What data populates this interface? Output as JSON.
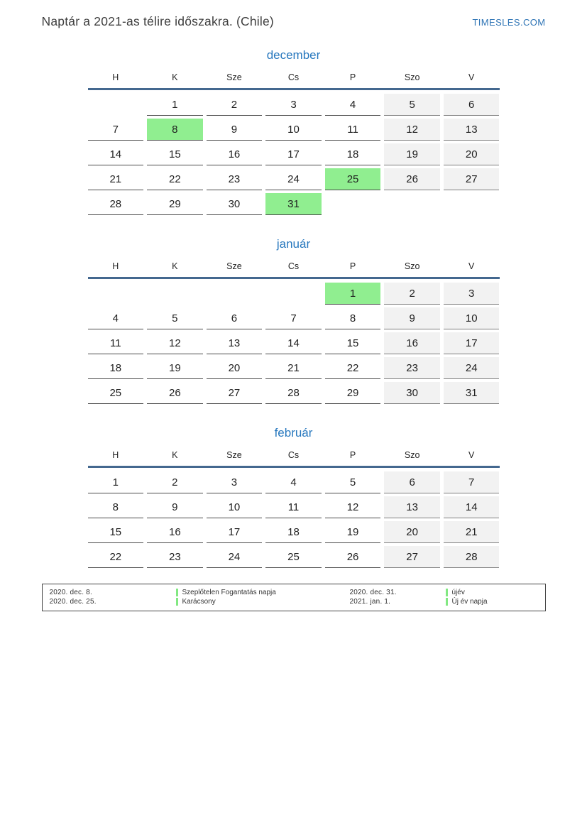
{
  "page": {
    "title": "Naptár a 2021-as télire időszakra. (Chile)",
    "site_link": "TIMESLES.COM"
  },
  "calendar": {
    "weekday_headers": [
      "H",
      "K",
      "Sze",
      "Cs",
      "P",
      "Szo",
      "V"
    ],
    "months": [
      {
        "name": "december",
        "weeks": [
          [
            {
              "day": "",
              "type": "empty"
            },
            {
              "day": "1",
              "type": "weekday"
            },
            {
              "day": "2",
              "type": "weekday"
            },
            {
              "day": "3",
              "type": "weekday"
            },
            {
              "day": "4",
              "type": "weekday"
            },
            {
              "day": "5",
              "type": "weekend"
            },
            {
              "day": "6",
              "type": "weekend"
            }
          ],
          [
            {
              "day": "7",
              "type": "weekday"
            },
            {
              "day": "8",
              "type": "holiday"
            },
            {
              "day": "9",
              "type": "weekday"
            },
            {
              "day": "10",
              "type": "weekday"
            },
            {
              "day": "11",
              "type": "weekday"
            },
            {
              "day": "12",
              "type": "weekend"
            },
            {
              "day": "13",
              "type": "weekend"
            }
          ],
          [
            {
              "day": "14",
              "type": "weekday"
            },
            {
              "day": "15",
              "type": "weekday"
            },
            {
              "day": "16",
              "type": "weekday"
            },
            {
              "day": "17",
              "type": "weekday"
            },
            {
              "day": "18",
              "type": "weekday"
            },
            {
              "day": "19",
              "type": "weekend"
            },
            {
              "day": "20",
              "type": "weekend"
            }
          ],
          [
            {
              "day": "21",
              "type": "weekday"
            },
            {
              "day": "22",
              "type": "weekday"
            },
            {
              "day": "23",
              "type": "weekday"
            },
            {
              "day": "24",
              "type": "weekday"
            },
            {
              "day": "25",
              "type": "holiday"
            },
            {
              "day": "26",
              "type": "weekend"
            },
            {
              "day": "27",
              "type": "weekend"
            }
          ],
          [
            {
              "day": "28",
              "type": "weekday"
            },
            {
              "day": "29",
              "type": "weekday"
            },
            {
              "day": "30",
              "type": "weekday"
            },
            {
              "day": "31",
              "type": "holiday"
            },
            {
              "day": "",
              "type": "empty"
            },
            {
              "day": "",
              "type": "empty"
            },
            {
              "day": "",
              "type": "empty"
            }
          ]
        ]
      },
      {
        "name": "január",
        "weeks": [
          [
            {
              "day": "",
              "type": "empty"
            },
            {
              "day": "",
              "type": "empty"
            },
            {
              "day": "",
              "type": "empty"
            },
            {
              "day": "",
              "type": "empty"
            },
            {
              "day": "1",
              "type": "holiday"
            },
            {
              "day": "2",
              "type": "weekend"
            },
            {
              "day": "3",
              "type": "weekend"
            }
          ],
          [
            {
              "day": "4",
              "type": "weekday"
            },
            {
              "day": "5",
              "type": "weekday"
            },
            {
              "day": "6",
              "type": "weekday"
            },
            {
              "day": "7",
              "type": "weekday"
            },
            {
              "day": "8",
              "type": "weekday"
            },
            {
              "day": "9",
              "type": "weekend"
            },
            {
              "day": "10",
              "type": "weekend"
            }
          ],
          [
            {
              "day": "11",
              "type": "weekday"
            },
            {
              "day": "12",
              "type": "weekday"
            },
            {
              "day": "13",
              "type": "weekday"
            },
            {
              "day": "14",
              "type": "weekday"
            },
            {
              "day": "15",
              "type": "weekday"
            },
            {
              "day": "16",
              "type": "weekend"
            },
            {
              "day": "17",
              "type": "weekend"
            }
          ],
          [
            {
              "day": "18",
              "type": "weekday"
            },
            {
              "day": "19",
              "type": "weekday"
            },
            {
              "day": "20",
              "type": "weekday"
            },
            {
              "day": "21",
              "type": "weekday"
            },
            {
              "day": "22",
              "type": "weekday"
            },
            {
              "day": "23",
              "type": "weekend"
            },
            {
              "day": "24",
              "type": "weekend"
            }
          ],
          [
            {
              "day": "25",
              "type": "weekday"
            },
            {
              "day": "26",
              "type": "weekday"
            },
            {
              "day": "27",
              "type": "weekday"
            },
            {
              "day": "28",
              "type": "weekday"
            },
            {
              "day": "29",
              "type": "weekday"
            },
            {
              "day": "30",
              "type": "weekend"
            },
            {
              "day": "31",
              "type": "weekend"
            }
          ]
        ]
      },
      {
        "name": "február",
        "weeks": [
          [
            {
              "day": "1",
              "type": "weekday"
            },
            {
              "day": "2",
              "type": "weekday"
            },
            {
              "day": "3",
              "type": "weekday"
            },
            {
              "day": "4",
              "type": "weekday"
            },
            {
              "day": "5",
              "type": "weekday"
            },
            {
              "day": "6",
              "type": "weekend"
            },
            {
              "day": "7",
              "type": "weekend"
            }
          ],
          [
            {
              "day": "8",
              "type": "weekday"
            },
            {
              "day": "9",
              "type": "weekday"
            },
            {
              "day": "10",
              "type": "weekday"
            },
            {
              "day": "11",
              "type": "weekday"
            },
            {
              "day": "12",
              "type": "weekday"
            },
            {
              "day": "13",
              "type": "weekend"
            },
            {
              "day": "14",
              "type": "weekend"
            }
          ],
          [
            {
              "day": "15",
              "type": "weekday"
            },
            {
              "day": "16",
              "type": "weekday"
            },
            {
              "day": "17",
              "type": "weekday"
            },
            {
              "day": "18",
              "type": "weekday"
            },
            {
              "day": "19",
              "type": "weekday"
            },
            {
              "day": "20",
              "type": "weekend"
            },
            {
              "day": "21",
              "type": "weekend"
            }
          ],
          [
            {
              "day": "22",
              "type": "weekday"
            },
            {
              "day": "23",
              "type": "weekday"
            },
            {
              "day": "24",
              "type": "weekday"
            },
            {
              "day": "25",
              "type": "weekday"
            },
            {
              "day": "26",
              "type": "weekday"
            },
            {
              "day": "27",
              "type": "weekend"
            },
            {
              "day": "28",
              "type": "weekend"
            }
          ]
        ]
      }
    ]
  },
  "legend": {
    "entries": [
      {
        "date": "2020. dec. 8.",
        "holiday": "Szeplőtelen Fogantatás napja"
      },
      {
        "date": "2020. dec. 25.",
        "holiday": "Karácsony"
      },
      {
        "date": "2020. dec. 31.",
        "holiday": "újév"
      },
      {
        "date": "2021. jan. 1.",
        "holiday": "Új év napja"
      }
    ]
  },
  "colors": {
    "accent_blue": "#2878be",
    "link_blue": "#2e74b5",
    "header_rule_blue": "#44688f",
    "holiday_green": "#90ee90",
    "weekend_gray": "#f2f2f2"
  }
}
